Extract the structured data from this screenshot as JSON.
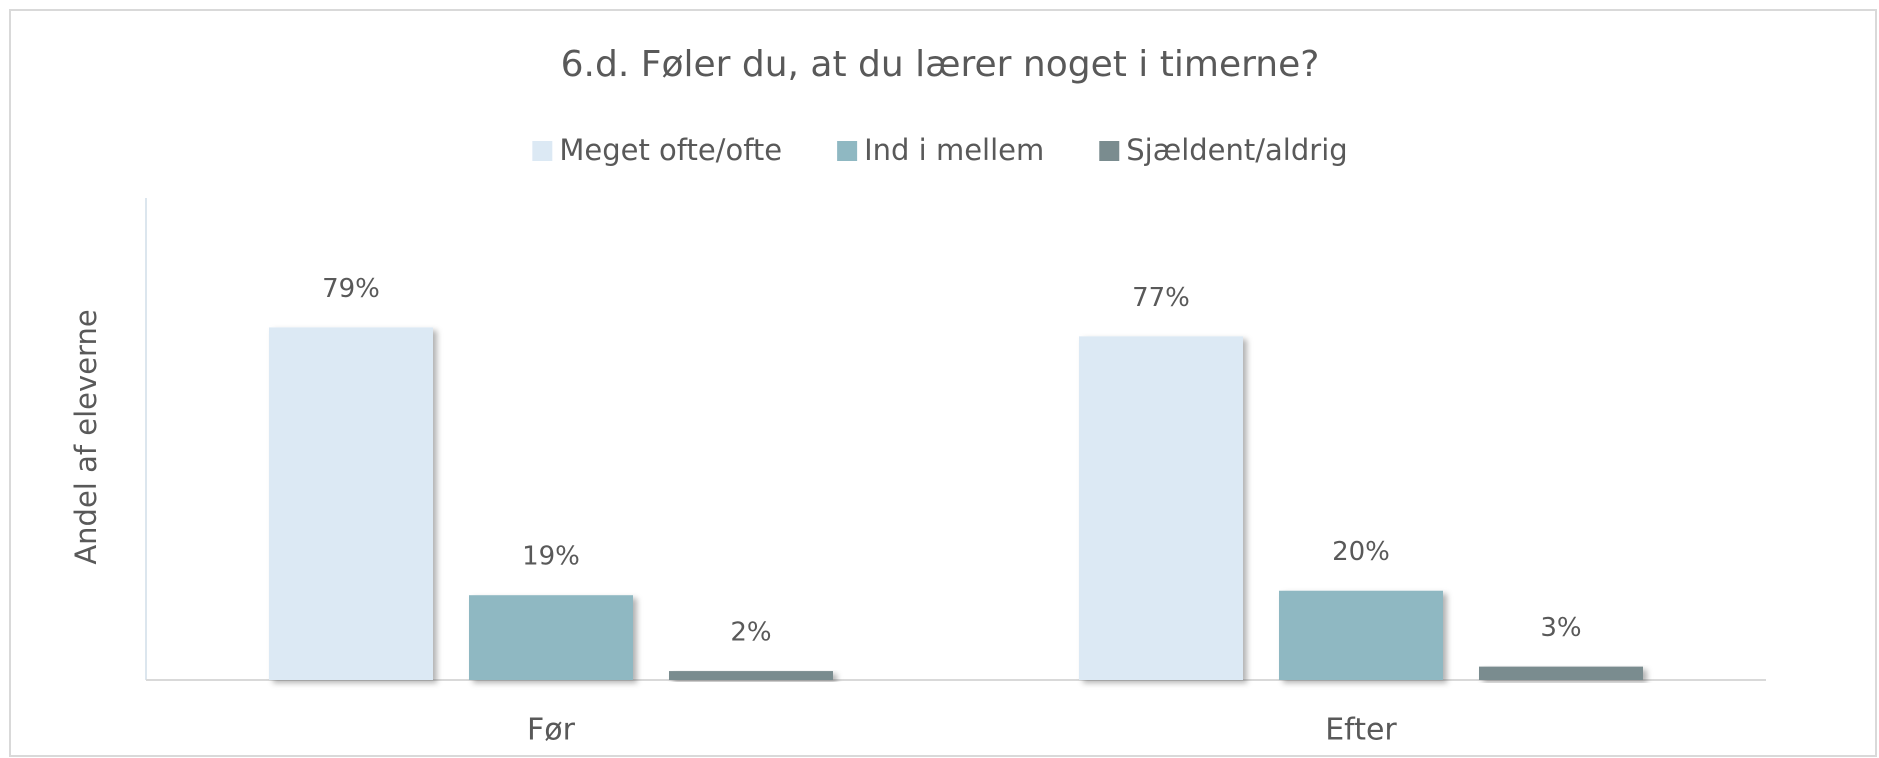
{
  "chart_data": {
    "type": "bar",
    "title": "6.d. Føler du, at du lærer noget i timerne?",
    "y_label": "Andel af eleverne",
    "categories": [
      "Før",
      "Efter"
    ],
    "series": [
      {
        "name": "Meget ofte/ofte",
        "color": "#dce9f4",
        "values": [
          79,
          77
        ],
        "value_labels": [
          "79%",
          "77%"
        ]
      },
      {
        "name": "Ind i mellem",
        "color": "#8fb8c2",
        "values": [
          19,
          20
        ],
        "value_labels": [
          "19%",
          "20%"
        ]
      },
      {
        "name": "Sjældent/aldrig",
        "color": "#7a8c8f",
        "values": [
          2,
          3
        ],
        "value_labels": [
          "2%",
          "3%"
        ]
      }
    ],
    "ylim": [
      0,
      108
    ],
    "legend": "top"
  }
}
